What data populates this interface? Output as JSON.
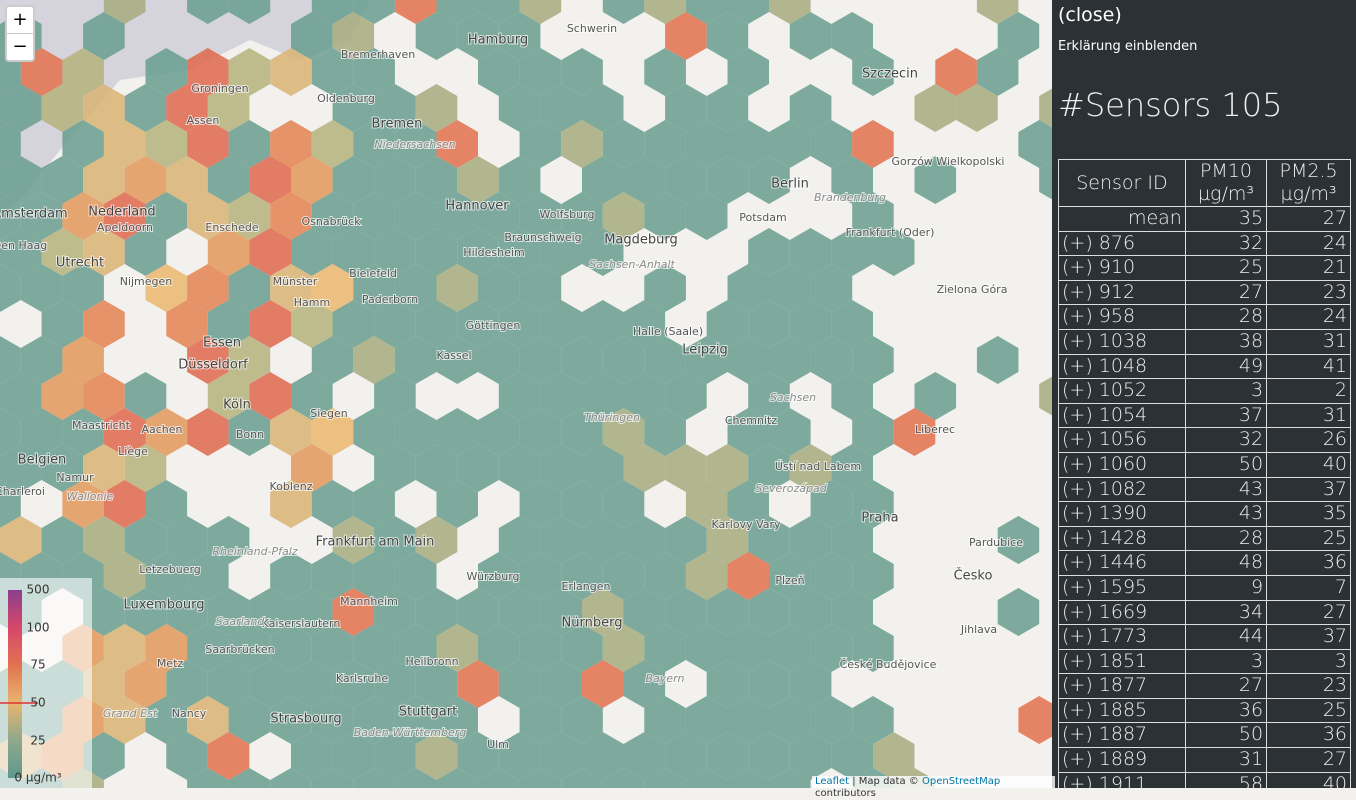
{
  "zoom": {
    "in": "+",
    "out": "−"
  },
  "sidebar": {
    "close": "(close)",
    "toggle": "Erklärung einblenden",
    "sensors_title": "#Sensors 105",
    "table": {
      "headers": [
        [
          "Sensor ID"
        ],
        [
          "PM10",
          "µg/m³"
        ],
        [
          "PM2.5",
          "µg/m³"
        ]
      ],
      "mean": [
        "mean",
        35,
        27
      ],
      "rows": [
        [
          "(+) 876",
          32,
          24
        ],
        [
          "(+) 910",
          25,
          21
        ],
        [
          "(+) 912",
          27,
          23
        ],
        [
          "(+) 958",
          28,
          24
        ],
        [
          "(+) 1038",
          38,
          31
        ],
        [
          "(+) 1048",
          49,
          41
        ],
        [
          "(+) 1052",
          3,
          2
        ],
        [
          "(+) 1054",
          37,
          31
        ],
        [
          "(+) 1056",
          32,
          26
        ],
        [
          "(+) 1060",
          50,
          40
        ],
        [
          "(+) 1082",
          43,
          37
        ],
        [
          "(+) 1390",
          43,
          35
        ],
        [
          "(+) 1428",
          28,
          25
        ],
        [
          "(+) 1446",
          48,
          36
        ],
        [
          "(+) 1595",
          9,
          7
        ],
        [
          "(+) 1669",
          34,
          27
        ],
        [
          "(+) 1773",
          44,
          37
        ],
        [
          "(+) 1851",
          3,
          3
        ],
        [
          "(+) 1877",
          27,
          23
        ],
        [
          "(+) 1885",
          36,
          25
        ],
        [
          "(+) 1887",
          50,
          36
        ],
        [
          "(+) 1889",
          31,
          27
        ],
        [
          "(+) 1911",
          58,
          40
        ]
      ]
    }
  },
  "legend": {
    "labels": [
      500,
      100,
      75,
      50,
      25,
      "0 µg/m³"
    ]
  },
  "map_labels": [
    "Hamburg",
    "Bremerhaven",
    "Bremen",
    "Oldenburg",
    "Schwerin",
    "Szczecin",
    "Groningen",
    "Assen",
    "Niedersachsen",
    "Hannover",
    "Wolfsburg",
    "Braunschweig",
    "Magdeburg",
    "Sachsen-Anhalt",
    "Berlin",
    "Potsdam",
    "Brandenburg",
    "Hildesheim",
    "Bielefeld",
    "Osnabrück",
    "Enschede",
    "Apeldoorn",
    "Nederland",
    "Utrecht",
    "Amsterdam",
    "Den Haag",
    "Nijmegen",
    "Münster",
    "Paderborn",
    "Göttingen",
    "Kassel",
    "Halle (Saale)",
    "Leipzig",
    "Essen",
    "Hamm",
    "Düsseldorf",
    "Köln",
    "Bonn",
    "Siegen",
    "Aachen",
    "Maastricht",
    "Liège",
    "Belgien",
    "Namur",
    "Wallonie",
    "Charleroi",
    "Thüringen",
    "Chemnitz",
    "Sachsen",
    "Koblenz",
    "Frankfurt am Main",
    "Würzburg",
    "Erlangen",
    "Nürnberg",
    "Mannheim",
    "Kaiserslautern",
    "Saarbrücken",
    "Metz",
    "Heilbronn",
    "Karlsruhe",
    "Stuttgart",
    "Strasbourg",
    "Nancy",
    "Grand Est",
    "Ulm",
    "Baden-Württemberg",
    "Bayern",
    "Praha",
    "Plzeň",
    "Česko",
    "Karlovy Vary",
    "Ústí nad Labem",
    "Severozápad",
    "Liberec",
    "Pardubice",
    "Jihlava",
    "České Budějovice",
    "Zielona Góra",
    "Frankfurt (Oder)",
    "Gorzów Wielkopolski",
    "Luxembourg",
    "Letzebuerg",
    "Rheinland-Pfalz",
    "Saarland"
  ],
  "attribution": {
    "leaflet": "Leaflet",
    "text": "| Map data ©",
    "osm": "OpenStreetMap",
    "tail": "contributors"
  }
}
